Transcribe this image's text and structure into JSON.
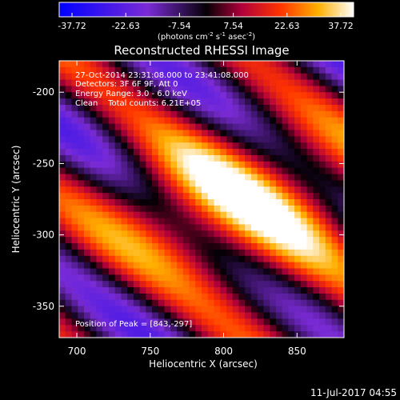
{
  "colorbar": {
    "ticks": [
      "-37.72",
      "-22.63",
      "-7.54",
      "7.54",
      "22.63",
      "37.72"
    ],
    "unit_base": "(photons cm",
    "unit_sup1": "-2",
    "unit_mid1": " s",
    "unit_sup2": "-1",
    "unit_mid2": " asec",
    "unit_sup3": "-2",
    "unit_end": ")"
  },
  "plot": {
    "title": "Reconstructed RHESSI Image",
    "annotations": [
      "27-Oct-2014 23:31:08.000 to 23:41:08.000",
      "Detectors: 3F 6F 9F, Att 0",
      "Energy Range: 3.0 - 6.0 keV",
      "Clean    Total counts: 6.21E+05"
    ],
    "peak_label": "Position of Peak = [843,-297]",
    "xlabel": "Heliocentric X (arcsec)",
    "ylabel": "Heliocentric Y (arcsec)",
    "xticks": [
      "700",
      "750",
      "800",
      "850"
    ],
    "yticks": [
      "-200",
      "-250",
      "-300",
      "-350"
    ]
  },
  "footer": {
    "timestamp": "11-Jul-2017 04:55"
  },
  "chart_data": {
    "type": "heatmap",
    "title": "Reconstructed RHESSI Image",
    "xlabel": "Heliocentric X (arcsec)",
    "ylabel": "Heliocentric Y (arcsec)",
    "xlim": [
      688,
      882
    ],
    "ylim": [
      -372,
      -178
    ],
    "color_range": [
      -37.72,
      37.72
    ],
    "peak": {
      "x": 843,
      "y": -297
    },
    "secondary_peak": {
      "x": 776,
      "y": -270
    },
    "colors": {
      "low": "#0000ff",
      "mid": "#000000",
      "high": "#ffffff"
    }
  }
}
